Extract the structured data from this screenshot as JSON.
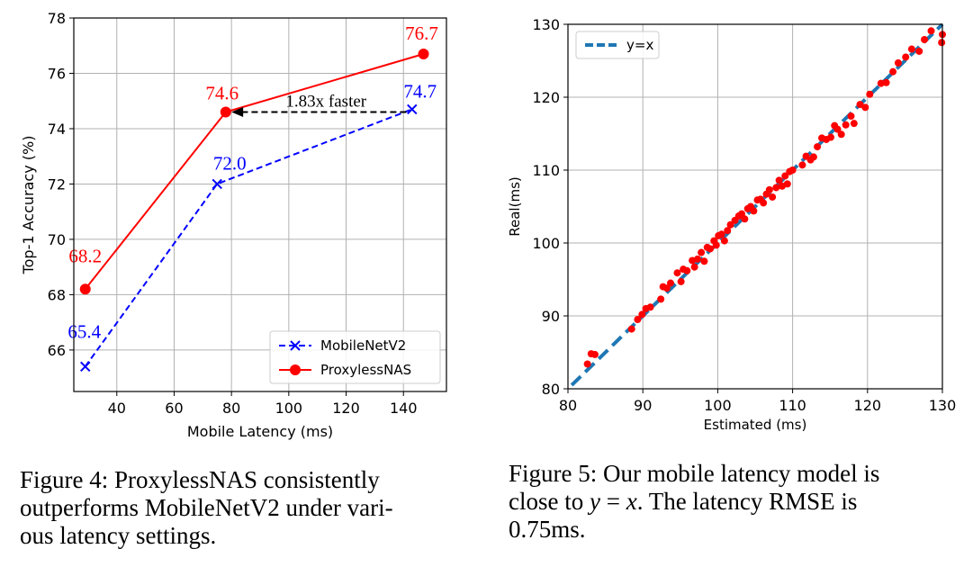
{
  "chart_data": [
    {
      "type": "line",
      "xlabel": "Mobile Latency (ms)",
      "ylabel": "Top-1 Accuracy (%)",
      "xlim": [
        25,
        155
      ],
      "ylim": [
        64.5,
        78
      ],
      "xticks": [
        40,
        60,
        80,
        100,
        120,
        140
      ],
      "yticks": [
        66,
        68,
        70,
        72,
        74,
        76,
        78
      ],
      "grid": true,
      "legend_position": "lower-right",
      "series": [
        {
          "name": "MobileNetV2",
          "color": "#0000ff",
          "style": "dashed",
          "marker": "x",
          "x": [
            29,
            75,
            143
          ],
          "y": [
            65.4,
            72.0,
            74.7
          ],
          "labels": [
            "65.4",
            "72.0",
            "74.7"
          ]
        },
        {
          "name": "ProxylessNAS",
          "color": "#ff0000",
          "style": "solid",
          "marker": "circle",
          "x": [
            29,
            78,
            147
          ],
          "y": [
            68.2,
            74.6,
            76.7
          ],
          "labels": [
            "68.2",
            "74.6",
            "76.7"
          ]
        }
      ],
      "annotation": {
        "text": "1.83x faster",
        "arrow_from": [
          141,
          74.6
        ],
        "arrow_to": [
          80,
          74.6
        ]
      }
    },
    {
      "type": "scatter",
      "xlabel": "Estimated (ms)",
      "ylabel": "Real(ms)",
      "xlim": [
        80,
        130
      ],
      "ylim": [
        80,
        130
      ],
      "xticks": [
        80,
        90,
        100,
        110,
        120,
        130
      ],
      "yticks": [
        80,
        90,
        100,
        110,
        120,
        130
      ],
      "grid": true,
      "legend_position": "top-left",
      "reference_line": {
        "name": "y=x",
        "color": "#1f77b4",
        "from": [
          80.5,
          80.5
        ],
        "to": [
          130,
          130
        ]
      },
      "series": [
        {
          "color": "#ff0000",
          "x": [
            82.6,
            83.1,
            83.6,
            88.5,
            89.3,
            89.9,
            90.4,
            91.0,
            92.4,
            92.7,
            93.2,
            93.7,
            94.6,
            95.1,
            95.4,
            95.9,
            96.6,
            96.9,
            97.3,
            97.8,
            98.2,
            98.6,
            99.0,
            99.5,
            99.8,
            100.1,
            100.5,
            100.9,
            101.3,
            101.7,
            102.3,
            102.8,
            103.2,
            103.6,
            104.0,
            104.4,
            104.8,
            105.3,
            105.7,
            106.1,
            106.5,
            106.9,
            107.3,
            107.8,
            108.2,
            108.6,
            109.0,
            109.3,
            109.6,
            110.0,
            111.3,
            111.8,
            112.4,
            112.8,
            113.3,
            113.9,
            114.5,
            115.1,
            115.6,
            116.0,
            116.5,
            117.1,
            117.8,
            118.2,
            119.0,
            119.7,
            120.3,
            121.8,
            122.5,
            123.4,
            124.1,
            125.1,
            125.9,
            126.9,
            127.6,
            128.5,
            129.9,
            130.0
          ],
          "y": [
            83.4,
            84.8,
            84.7,
            88.2,
            89.5,
            90.2,
            91.0,
            91.2,
            92.3,
            94.0,
            93.8,
            94.5,
            95.9,
            94.7,
            96.4,
            96.2,
            97.6,
            96.7,
            97.8,
            98.7,
            97.5,
            99.4,
            99.2,
            100.3,
            99.7,
            101.0,
            101.2,
            100.3,
            101.7,
            102.5,
            103.1,
            103.7,
            104.0,
            103.3,
            104.7,
            105.0,
            104.4,
            105.9,
            106.0,
            105.5,
            106.7,
            107.3,
            106.3,
            107.6,
            108.6,
            107.8,
            109.2,
            108.1,
            109.8,
            110.0,
            110.7,
            111.9,
            111.4,
            111.8,
            113.2,
            114.4,
            114.2,
            114.5,
            116.1,
            115.6,
            114.9,
            116.2,
            117.4,
            116.4,
            119.0,
            118.6,
            120.4,
            121.9,
            122.0,
            123.5,
            124.7,
            125.5,
            126.6,
            126.3,
            127.9,
            129.1,
            127.5,
            128.6
          ]
        }
      ]
    }
  ],
  "captions": {
    "fig4": [
      "Figure 4:  ProxylessNAS consistently",
      "outperforms MobileNetV2 under vari-",
      "ous latency settings."
    ],
    "fig5_l1": "Figure 5:  Our mobile latency model is",
    "fig5_l2_pre": "close to ",
    "fig5_y": "y",
    "fig5_eq": " = ",
    "fig5_x": "x",
    "fig5_l2_post": ".  The latency RMSE is",
    "fig5_l3": "0.75ms."
  }
}
